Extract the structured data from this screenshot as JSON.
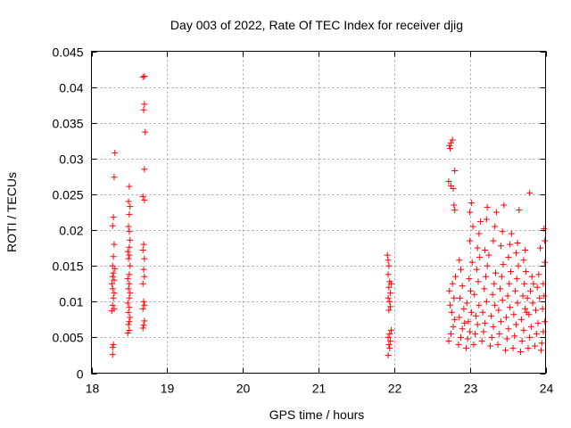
{
  "chart_data": {
    "type": "scatter",
    "title": "Day 003 of 2022, Rate Of TEC Index for receiver djig",
    "xlabel": "GPS time / hours",
    "ylabel": "ROTI / TECUs",
    "xlim": [
      18,
      24
    ],
    "ylim": [
      0,
      0.045
    ],
    "x_ticks": [
      "18",
      "19",
      "20",
      "21",
      "22",
      "23",
      "24"
    ],
    "y_ticks": [
      "0",
      "0.005",
      "0.01",
      "0.015",
      "0.02",
      "0.025",
      "0.03",
      "0.035",
      "0.04",
      "0.045"
    ],
    "grid": true,
    "marker": "+",
    "marker_color": "#ff0000",
    "series": [
      {
        "name": "ROTI",
        "points": [
          [
            18.28,
            0.0026
          ],
          [
            18.28,
            0.0036
          ],
          [
            18.29,
            0.004
          ],
          [
            18.27,
            0.0087
          ],
          [
            18.3,
            0.009
          ],
          [
            18.28,
            0.0095
          ],
          [
            18.29,
            0.0105
          ],
          [
            18.3,
            0.0112
          ],
          [
            18.28,
            0.0118
          ],
          [
            18.27,
            0.0125
          ],
          [
            18.3,
            0.013
          ],
          [
            18.28,
            0.0135
          ],
          [
            18.29,
            0.014
          ],
          [
            18.31,
            0.0146
          ],
          [
            18.28,
            0.015
          ],
          [
            18.29,
            0.0163
          ],
          [
            18.3,
            0.018
          ],
          [
            18.28,
            0.0206
          ],
          [
            18.29,
            0.0218
          ],
          [
            18.3,
            0.0274
          ],
          [
            18.31,
            0.0308
          ],
          [
            18.48,
            0.0056
          ],
          [
            18.5,
            0.006
          ],
          [
            18.49,
            0.0068
          ],
          [
            18.5,
            0.0072
          ],
          [
            18.51,
            0.0078
          ],
          [
            18.49,
            0.0085
          ],
          [
            18.5,
            0.0092
          ],
          [
            18.48,
            0.0098
          ],
          [
            18.5,
            0.0105
          ],
          [
            18.51,
            0.0112
          ],
          [
            18.49,
            0.0118
          ],
          [
            18.5,
            0.0125
          ],
          [
            18.48,
            0.0132
          ],
          [
            18.5,
            0.0138
          ],
          [
            18.51,
            0.015
          ],
          [
            18.49,
            0.016
          ],
          [
            18.5,
            0.0165
          ],
          [
            18.48,
            0.017
          ],
          [
            18.5,
            0.0176
          ],
          [
            18.51,
            0.0186
          ],
          [
            18.5,
            0.0198
          ],
          [
            18.49,
            0.0205
          ],
          [
            18.5,
            0.0222
          ],
          [
            18.51,
            0.0233
          ],
          [
            18.49,
            0.024
          ],
          [
            18.5,
            0.0261
          ],
          [
            18.68,
            0.0063
          ],
          [
            18.69,
            0.0067
          ],
          [
            18.7,
            0.0073
          ],
          [
            18.68,
            0.009
          ],
          [
            18.7,
            0.0095
          ],
          [
            18.69,
            0.01
          ],
          [
            18.68,
            0.0125
          ],
          [
            18.7,
            0.0135
          ],
          [
            18.69,
            0.0145
          ],
          [
            18.7,
            0.016
          ],
          [
            18.68,
            0.0172
          ],
          [
            18.69,
            0.018
          ],
          [
            18.7,
            0.0242
          ],
          [
            18.68,
            0.0247
          ],
          [
            18.7,
            0.0285
          ],
          [
            18.71,
            0.0337
          ],
          [
            18.69,
            0.0368
          ],
          [
            18.7,
            0.0376
          ],
          [
            18.68,
            0.0414
          ],
          [
            18.7,
            0.0415
          ],
          [
            21.92,
            0.0025
          ],
          [
            21.94,
            0.0035
          ],
          [
            21.93,
            0.004
          ],
          [
            21.95,
            0.0045
          ],
          [
            21.92,
            0.005
          ],
          [
            21.94,
            0.0055
          ],
          [
            21.96,
            0.006
          ],
          [
            21.93,
            0.0088
          ],
          [
            21.95,
            0.0093
          ],
          [
            21.94,
            0.01
          ],
          [
            21.92,
            0.0105
          ],
          [
            21.95,
            0.0112
          ],
          [
            21.93,
            0.012
          ],
          [
            21.96,
            0.0125
          ],
          [
            21.94,
            0.0128
          ],
          [
            21.92,
            0.0138
          ],
          [
            21.93,
            0.015
          ],
          [
            21.92,
            0.0158
          ],
          [
            21.91,
            0.0165
          ],
          [
            22.72,
            0.0045
          ],
          [
            22.75,
            0.0055
          ],
          [
            22.78,
            0.0065
          ],
          [
            22.8,
            0.0075
          ],
          [
            22.76,
            0.0085
          ],
          [
            22.74,
            0.0095
          ],
          [
            22.79,
            0.0105
          ],
          [
            22.73,
            0.0115
          ],
          [
            22.77,
            0.0125
          ],
          [
            22.81,
            0.0135
          ],
          [
            22.72,
            0.0268
          ],
          [
            22.75,
            0.0262
          ],
          [
            22.78,
            0.0258
          ],
          [
            22.8,
            0.0283
          ],
          [
            22.73,
            0.0318
          ],
          [
            22.75,
            0.0322
          ],
          [
            22.77,
            0.0326
          ],
          [
            22.74,
            0.0314
          ],
          [
            22.79,
            0.0235
          ],
          [
            22.8,
            0.0228
          ],
          [
            22.85,
            0.004
          ],
          [
            22.88,
            0.005
          ],
          [
            22.9,
            0.0062
          ],
          [
            22.86,
            0.0078
          ],
          [
            22.92,
            0.009
          ],
          [
            22.87,
            0.0105
          ],
          [
            22.9,
            0.0122
          ],
          [
            22.88,
            0.0145
          ],
          [
            22.86,
            0.0158
          ],
          [
            22.93,
            0.007
          ],
          [
            22.95,
            0.0035
          ],
          [
            22.97,
            0.0048
          ],
          [
            23.0,
            0.0058
          ],
          [
            22.98,
            0.0072
          ],
          [
            23.02,
            0.0085
          ],
          [
            22.96,
            0.0098
          ],
          [
            23.01,
            0.0115
          ],
          [
            22.99,
            0.0132
          ],
          [
            23.03,
            0.0155
          ],
          [
            23.0,
            0.0185
          ],
          [
            23.0,
            0.0225
          ],
          [
            23.02,
            0.0238
          ],
          [
            23.04,
            0.0205
          ],
          [
            23.05,
            0.004
          ],
          [
            23.07,
            0.0055
          ],
          [
            23.1,
            0.0068
          ],
          [
            23.08,
            0.008
          ],
          [
            23.12,
            0.0095
          ],
          [
            23.06,
            0.011
          ],
          [
            23.11,
            0.0128
          ],
          [
            23.09,
            0.0145
          ],
          [
            23.13,
            0.0162
          ],
          [
            23.1,
            0.0175
          ],
          [
            23.12,
            0.0195
          ],
          [
            23.14,
            0.0212
          ],
          [
            23.16,
            0.0045
          ],
          [
            23.18,
            0.0058
          ],
          [
            23.2,
            0.007
          ],
          [
            23.17,
            0.0085
          ],
          [
            23.22,
            0.01
          ],
          [
            23.19,
            0.0118
          ],
          [
            23.21,
            0.0135
          ],
          [
            23.23,
            0.015
          ],
          [
            23.2,
            0.0172
          ],
          [
            23.22,
            0.0215
          ],
          [
            23.23,
            0.0232
          ],
          [
            23.25,
            0.0165
          ],
          [
            23.27,
            0.0038
          ],
          [
            23.29,
            0.005
          ],
          [
            23.31,
            0.0065
          ],
          [
            23.28,
            0.008
          ],
          [
            23.33,
            0.0095
          ],
          [
            23.3,
            0.011
          ],
          [
            23.32,
            0.0125
          ],
          [
            23.34,
            0.014
          ],
          [
            23.31,
            0.0185
          ],
          [
            23.33,
            0.0205
          ],
          [
            23.35,
            0.0225
          ],
          [
            23.37,
            0.004
          ],
          [
            23.39,
            0.0055
          ],
          [
            23.41,
            0.0072
          ],
          [
            23.38,
            0.0088
          ],
          [
            23.43,
            0.0102
          ],
          [
            23.4,
            0.0118
          ],
          [
            23.42,
            0.0135
          ],
          [
            23.44,
            0.0152
          ],
          [
            23.41,
            0.0178
          ],
          [
            23.43,
            0.0198
          ],
          [
            23.45,
            0.0235
          ],
          [
            23.47,
            0.0032
          ],
          [
            23.49,
            0.0048
          ],
          [
            23.51,
            0.0062
          ],
          [
            23.48,
            0.0078
          ],
          [
            23.53,
            0.0092
          ],
          [
            23.5,
            0.0108
          ],
          [
            23.52,
            0.0125
          ],
          [
            23.54,
            0.0142
          ],
          [
            23.51,
            0.0162
          ],
          [
            23.53,
            0.018
          ],
          [
            23.55,
            0.0195
          ],
          [
            23.57,
            0.0035
          ],
          [
            23.59,
            0.0052
          ],
          [
            23.61,
            0.0068
          ],
          [
            23.58,
            0.0082
          ],
          [
            23.63,
            0.0098
          ],
          [
            23.6,
            0.0115
          ],
          [
            23.62,
            0.0132
          ],
          [
            23.64,
            0.015
          ],
          [
            23.61,
            0.0168
          ],
          [
            23.63,
            0.0182
          ],
          [
            23.65,
            0.0228
          ],
          [
            23.67,
            0.003
          ],
          [
            23.69,
            0.0045
          ],
          [
            23.71,
            0.006
          ],
          [
            23.68,
            0.0075
          ],
          [
            23.73,
            0.009
          ],
          [
            23.7,
            0.0108
          ],
          [
            23.72,
            0.0125
          ],
          [
            23.74,
            0.0142
          ],
          [
            23.71,
            0.0158
          ],
          [
            23.73,
            0.0172
          ],
          [
            23.75,
            0.0085
          ],
          [
            23.77,
            0.0035
          ],
          [
            23.79,
            0.005
          ],
          [
            23.81,
            0.0065
          ],
          [
            23.78,
            0.0082
          ],
          [
            23.83,
            0.0098
          ],
          [
            23.8,
            0.0115
          ],
          [
            23.82,
            0.0135
          ],
          [
            23.84,
            0.0125
          ],
          [
            23.79,
            0.0252
          ],
          [
            23.76,
            0.0105
          ],
          [
            23.86,
            0.0038
          ],
          [
            23.88,
            0.0055
          ],
          [
            23.9,
            0.007
          ],
          [
            23.87,
            0.0088
          ],
          [
            23.92,
            0.0105
          ],
          [
            23.89,
            0.012
          ],
          [
            23.91,
            0.0138
          ],
          [
            23.93,
            0.0175
          ],
          [
            23.95,
            0.0042
          ],
          [
            23.97,
            0.0058
          ],
          [
            23.99,
            0.0072
          ],
          [
            23.96,
            0.009
          ],
          [
            23.98,
            0.0108
          ],
          [
            23.97,
            0.0125
          ],
          [
            23.99,
            0.0155
          ],
          [
            23.98,
            0.0202
          ],
          [
            23.99,
            0.0185
          ],
          [
            23.94,
            0.0032
          ]
        ]
      }
    ]
  }
}
